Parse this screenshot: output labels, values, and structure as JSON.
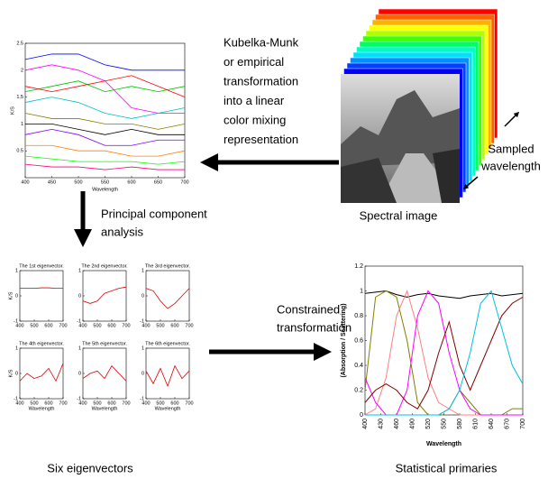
{
  "labels": {
    "kubelka": [
      "Kubelka-Munk",
      "or empirical",
      "transformation",
      "into a linear",
      "color mixing",
      "representation"
    ],
    "sampled": [
      "Sampled",
      "wavelength"
    ],
    "spectral_image": "Spectral image",
    "pca": [
      "Principal component",
      "analysis"
    ],
    "constrained": [
      "Constrained",
      "transformation"
    ],
    "six": "Six eigenvectors",
    "primaries": "Statistical primaries"
  },
  "spectra_chart": {
    "type": "line",
    "xlabel": "Wavelength",
    "ylabel": "K/S",
    "x": [
      400,
      450,
      500,
      550,
      600,
      650,
      700
    ],
    "xlim": [
      400,
      700
    ],
    "ylim": [
      0,
      2.5
    ],
    "xticks": [
      400,
      450,
      500,
      550,
      600,
      650,
      700
    ],
    "yticks": [
      0.5,
      1,
      1.5,
      2,
      2.5
    ],
    "series": [
      {
        "color": "#0000ff",
        "values": [
          2.2,
          2.3,
          2.3,
          2.1,
          2.0,
          2.0,
          2.0
        ]
      },
      {
        "color": "#ff00ff",
        "values": [
          2.0,
          2.1,
          2.0,
          1.8,
          1.3,
          1.2,
          1.2
        ]
      },
      {
        "color": "#00c000",
        "values": [
          1.6,
          1.7,
          1.8,
          1.6,
          1.7,
          1.6,
          1.7
        ]
      },
      {
        "color": "#ff0000",
        "values": [
          1.7,
          1.6,
          1.7,
          1.8,
          1.9,
          1.7,
          1.5
        ]
      },
      {
        "color": "#00c0c0",
        "values": [
          1.4,
          1.5,
          1.4,
          1.2,
          1.1,
          1.2,
          1.3
        ]
      },
      {
        "color": "#808000",
        "values": [
          1.2,
          1.1,
          1.1,
          1.0,
          1.0,
          0.9,
          1.0
        ]
      },
      {
        "color": "#000000",
        "values": [
          1.0,
          1.0,
          0.9,
          0.8,
          0.9,
          0.8,
          0.8
        ]
      },
      {
        "color": "#8000ff",
        "values": [
          0.8,
          0.9,
          0.8,
          0.6,
          0.6,
          0.7,
          0.7
        ]
      },
      {
        "color": "#ff8000",
        "values": [
          0.6,
          0.6,
          0.5,
          0.5,
          0.4,
          0.4,
          0.5
        ]
      },
      {
        "color": "#00ff00",
        "values": [
          0.4,
          0.35,
          0.3,
          0.3,
          0.3,
          0.25,
          0.3
        ]
      },
      {
        "color": "#ff0080",
        "values": [
          0.25,
          0.2,
          0.2,
          0.15,
          0.2,
          0.15,
          0.15
        ]
      }
    ]
  },
  "eigenvectors": [
    {
      "type": "line",
      "title": "The 1st eigenvector.",
      "ylabel": "K/S",
      "x": [
        400,
        450,
        500,
        550,
        600,
        650,
        700
      ],
      "xlim": [
        400,
        700
      ],
      "ylim": [
        -1,
        1
      ],
      "xticks": [
        400,
        500,
        600,
        700
      ],
      "yticks": [
        -1,
        0,
        1
      ],
      "series": [
        {
          "color": "#e00000",
          "values": [
            0.3,
            0.3,
            0.3,
            0.32,
            0.32,
            0.3,
            0.3
          ]
        }
      ]
    },
    {
      "type": "line",
      "title": "The 2nd eigenvector.",
      "x": [
        400,
        450,
        500,
        550,
        600,
        650,
        700
      ],
      "xlim": [
        400,
        700
      ],
      "ylim": [
        -1,
        1
      ],
      "xticks": [
        400,
        500,
        600,
        700
      ],
      "yticks": [
        -1,
        0,
        1
      ],
      "series": [
        {
          "color": "#e00000",
          "values": [
            -0.2,
            -0.3,
            -0.2,
            0.1,
            0.2,
            0.3,
            0.35
          ]
        }
      ]
    },
    {
      "type": "line",
      "title": "The 3rd eigenvector.",
      "x": [
        400,
        450,
        500,
        550,
        600,
        650,
        700
      ],
      "xlim": [
        400,
        700
      ],
      "ylim": [
        -1,
        1
      ],
      "xticks": [
        400,
        500,
        600,
        700
      ],
      "yticks": [
        -1,
        0,
        1
      ],
      "series": [
        {
          "color": "#e00000",
          "values": [
            0.3,
            0.2,
            -0.2,
            -0.5,
            -0.3,
            0,
            0.3
          ]
        }
      ]
    },
    {
      "type": "line",
      "title": "The 4th eigenvector.",
      "ylabel": "K/S",
      "xlabel": "Wavelength",
      "x": [
        400,
        450,
        500,
        550,
        600,
        650,
        700
      ],
      "xlim": [
        400,
        700
      ],
      "ylim": [
        -1,
        1
      ],
      "xticks": [
        400,
        500,
        600,
        700
      ],
      "yticks": [
        -1,
        0,
        1
      ],
      "series": [
        {
          "color": "#e00000",
          "values": [
            -0.3,
            0,
            -0.2,
            -0.1,
            0.2,
            -0.3,
            0.4
          ]
        }
      ]
    },
    {
      "type": "line",
      "title": "The 5th eigenvector.",
      "xlabel": "Wavelength",
      "x": [
        400,
        450,
        500,
        550,
        600,
        650,
        700
      ],
      "xlim": [
        400,
        700
      ],
      "ylim": [
        -1,
        1
      ],
      "xticks": [
        400,
        500,
        600,
        700
      ],
      "yticks": [
        -1,
        0,
        1
      ],
      "series": [
        {
          "color": "#e00000",
          "values": [
            -0.2,
            0,
            0.1,
            -0.2,
            0.3,
            0,
            -0.3
          ]
        }
      ]
    },
    {
      "type": "line",
      "title": "The 6th eigenvector.",
      "xlabel": "Wavelength",
      "x": [
        400,
        450,
        500,
        550,
        600,
        650,
        700
      ],
      "xlim": [
        400,
        700
      ],
      "ylim": [
        -1,
        1
      ],
      "xticks": [
        400,
        500,
        600,
        700
      ],
      "yticks": [
        -1,
        0,
        1
      ],
      "series": [
        {
          "color": "#e00000",
          "values": [
            0.1,
            -0.4,
            0.2,
            -0.5,
            0.3,
            -0.2,
            0.1
          ]
        }
      ]
    }
  ],
  "primaries_chart": {
    "type": "line",
    "xlabel": "Wavelength",
    "ylabel": "(Absorption / Scattering)",
    "x": [
      400,
      420,
      440,
      460,
      480,
      500,
      520,
      540,
      560,
      580,
      600,
      620,
      640,
      660,
      680,
      700
    ],
    "xlim": [
      400,
      700
    ],
    "ylim": [
      0,
      1.2
    ],
    "xticks": [
      400,
      430,
      460,
      490,
      520,
      550,
      580,
      610,
      640,
      670,
      700
    ],
    "yticks": [
      0,
      0.2,
      0.4,
      0.6,
      0.8,
      1,
      1.2
    ],
    "series": [
      {
        "color": "#000000",
        "values": [
          0.98,
          0.99,
          1,
          0.97,
          0.95,
          0.97,
          0.98,
          0.96,
          0.95,
          0.94,
          0.96,
          0.97,
          0.98,
          0.96,
          0.97,
          0.98
        ]
      },
      {
        "color": "#808000",
        "values": [
          0.2,
          0.95,
          1,
          0.95,
          0.6,
          0.1,
          0,
          0,
          0.05,
          0.2,
          0.1,
          0,
          0,
          0,
          0.05,
          0.05
        ]
      },
      {
        "color": "#ff8080",
        "values": [
          0,
          0.05,
          0.3,
          0.8,
          1,
          0.7,
          0.3,
          0.1,
          0.05,
          0,
          0,
          0,
          0,
          0,
          0,
          0
        ]
      },
      {
        "color": "#ff00ff",
        "values": [
          0.3,
          0.1,
          0,
          0,
          0.2,
          0.8,
          1,
          0.9,
          0.5,
          0.2,
          0.05,
          0,
          0,
          0,
          0,
          0
        ]
      },
      {
        "color": "#800000",
        "values": [
          0.1,
          0.2,
          0.25,
          0.2,
          0.1,
          0.05,
          0.2,
          0.5,
          0.75,
          0.4,
          0.2,
          0.4,
          0.6,
          0.8,
          0.9,
          0.95
        ]
      },
      {
        "color": "#00c0e0",
        "values": [
          0,
          0,
          0,
          0,
          0,
          0,
          0,
          0,
          0.05,
          0.2,
          0.5,
          0.9,
          1,
          0.7,
          0.4,
          0.25
        ]
      }
    ]
  }
}
